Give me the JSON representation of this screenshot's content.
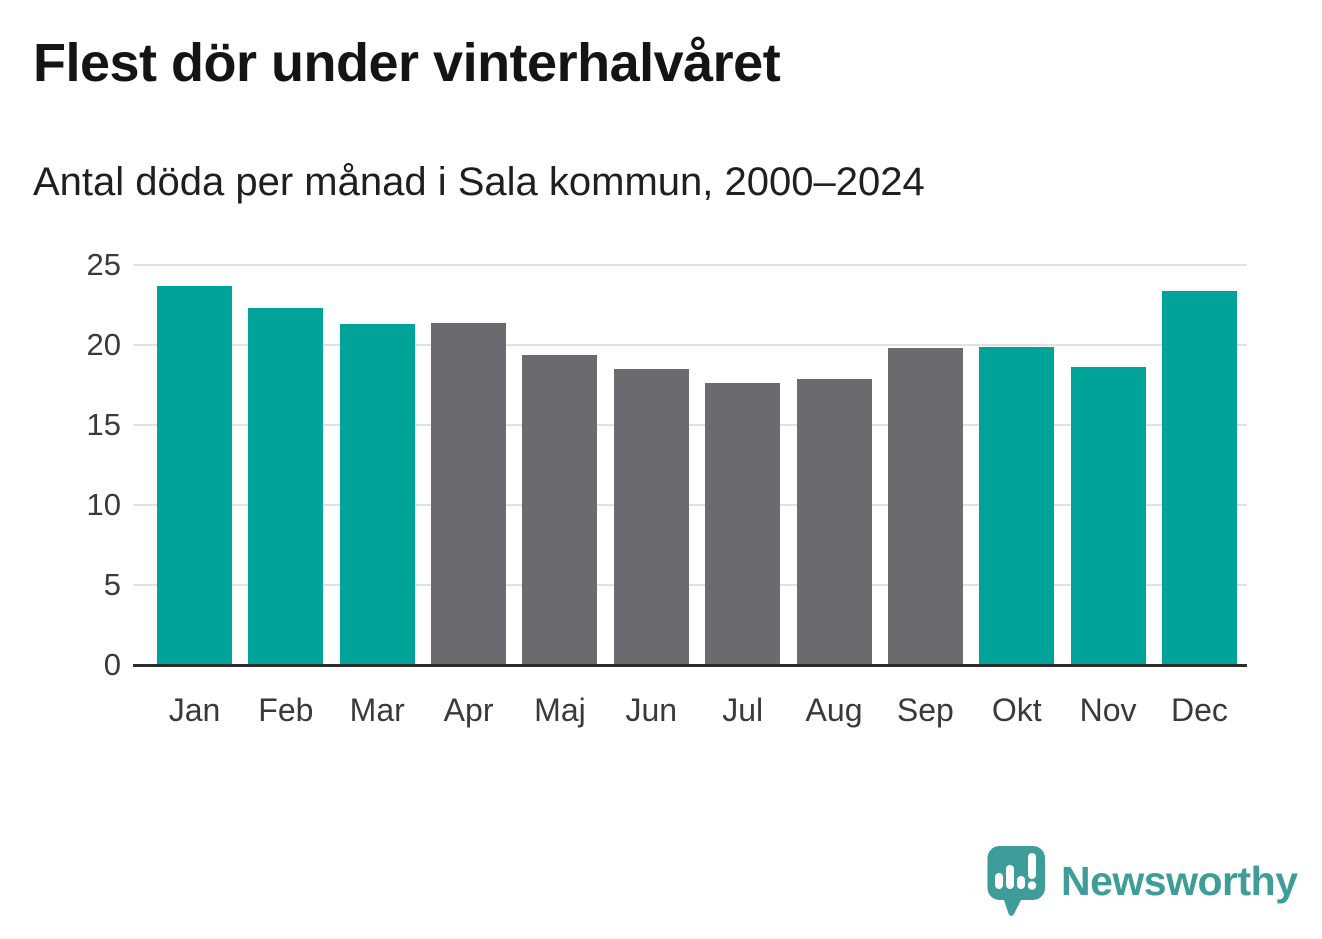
{
  "header": {
    "title": "Flest dör under vinterhalvåret",
    "subtitle": "Antal döda per månad i Sala kommun, 2000–2024"
  },
  "chart_data": {
    "type": "bar",
    "title": "Flest dör under vinterhalvåret",
    "subtitle": "Antal döda per månad i Sala kommun, 2000–2024",
    "categories": [
      "Jan",
      "Feb",
      "Mar",
      "Apr",
      "Maj",
      "Jun",
      "Jul",
      "Aug",
      "Sep",
      "Okt",
      "Nov",
      "Dec"
    ],
    "values": [
      23.7,
      22.3,
      21.3,
      21.4,
      19.4,
      18.5,
      17.6,
      17.9,
      19.8,
      19.9,
      18.6,
      23.4
    ],
    "highlight": [
      true,
      true,
      true,
      false,
      false,
      false,
      false,
      false,
      false,
      true,
      true,
      true
    ],
    "colors": {
      "highlight": "#00a39a",
      "base": "#6b6b6f",
      "gridline": "#e1e1e1",
      "axis": "#2d2d2d"
    },
    "xlabel": "",
    "ylabel": "",
    "ylim": [
      0,
      25
    ],
    "yticks": [
      0,
      5,
      10,
      15,
      20,
      25
    ],
    "grid": true,
    "legend": false
  },
  "footer": {
    "brand": "Newsworthy",
    "brand_color": "#3f9d99"
  }
}
